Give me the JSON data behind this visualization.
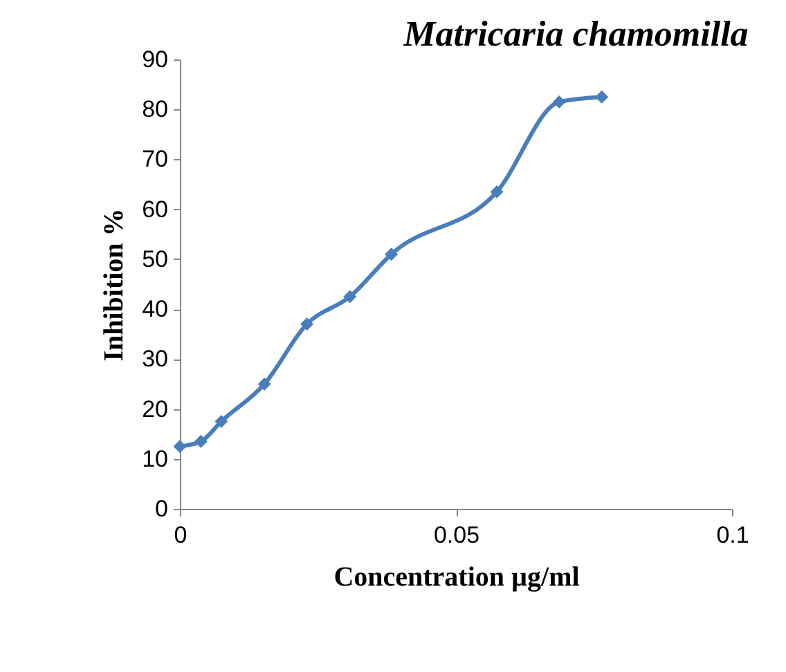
{
  "chart_data": {
    "type": "line",
    "title": "Matricaria chamomilla",
    "xlabel": "Concentration µg/ml",
    "ylabel": "Inhibition %",
    "x": [
      0,
      0.0038,
      0.0075,
      0.0153,
      0.023,
      0.0308,
      0.0383,
      0.0574,
      0.0687,
      0.0764
    ],
    "series": [
      {
        "color": "#4a7ebb",
        "values": [
          12.5,
          13.5,
          17.5,
          25,
          37,
          42.5,
          51,
          63.5,
          81.5,
          82.5
        ]
      }
    ],
    "xlim": [
      0,
      0.1
    ],
    "xticks": [
      0,
      0.05,
      0.1
    ],
    "ylim": [
      0,
      90
    ],
    "yticks": [
      0,
      10,
      20,
      30,
      40,
      50,
      60,
      70,
      80,
      90
    ],
    "grid": false,
    "marker": "diamond",
    "line_style": "solid"
  }
}
